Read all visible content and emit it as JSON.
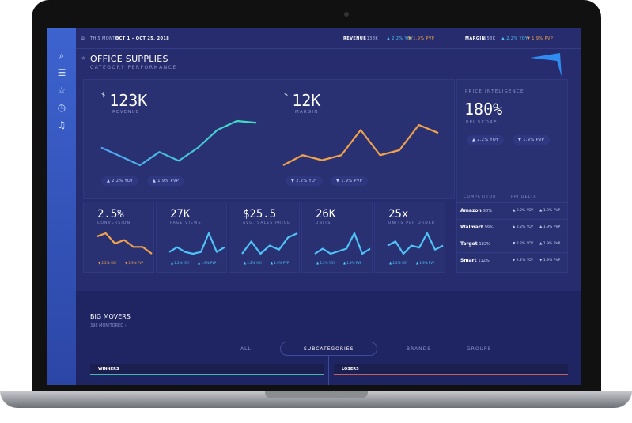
{
  "topbar": {
    "period_label": "THIS MONTH:",
    "period": "OCT 1 – OCT 25, 2018",
    "revenue_label": "REVENUE",
    "revenue": "$138K",
    "revenue_yoy": "▲ 2.2% YOY",
    "revenue_pvp": "▼ 1.9% PVP",
    "margin_label": "MARGIN",
    "margin": "$58K",
    "margin_yoy": "▲ 2.2% YOY",
    "margin_pvp": "▼ 1.9% PVP"
  },
  "header": {
    "title": "OFFICE SUPPLIES",
    "subtitle": "CATEGORY PERFORMANCE"
  },
  "revenue": {
    "currency": "$",
    "value": "123K",
    "label": "REVENUE",
    "yoy": "▲ 2.2% YOY",
    "pvp": "▲ 1.9% PVP",
    "points": [
      5,
      4,
      3,
      4.5,
      3.5,
      5,
      7,
      8,
      7.8
    ],
    "color": "#4fc3f7"
  },
  "margin": {
    "currency": "$",
    "value": "12K",
    "label": "MARGIN",
    "yoy": "▼ 2.2% YOY",
    "pvp": "▼ 1.9% PVP",
    "points": [
      3,
      4,
      3.5,
      4,
      6.5,
      4,
      4.5,
      7,
      6.2
    ],
    "color": "#f0a34b"
  },
  "price": {
    "title": "PRICE INTELIGENCE",
    "value": "180%",
    "label": "PPI SCORE",
    "yoy": "▲ 2.2% YOY",
    "pvp": "▼ 1.9% PVP",
    "col1": "COMPETITOR",
    "col2": "PPI DELTA",
    "rows": [
      {
        "name": "Amazon",
        "pct": "98%",
        "yoy": "▲ 2.2% YOY",
        "pvp": "▲ 1.9% PVP"
      },
      {
        "name": "Walmart",
        "pct": "99%",
        "yoy": "▲ 2.2% YOY",
        "pvp": "▲ 1.9% PVP"
      },
      {
        "name": "Target",
        "pct": "182%",
        "yoy": "▼ 2.2% YOY",
        "pvp": "▲ 1.9% PVP"
      },
      {
        "name": "Smart",
        "pct": "112%",
        "yoy": "▼ 2.2% YOY",
        "pvp": "▼ 1.9% PVP"
      }
    ]
  },
  "cards": [
    {
      "value": "2.5%",
      "label": "CONVERSION",
      "yoy": "▼ 2.2% YOY",
      "pvp": "▼ 1.9% PVP",
      "color": "#f0a34b",
      "points": [
        6,
        7,
        4,
        5,
        3,
        3,
        1
      ]
    },
    {
      "value": "27K",
      "label": "PAGE VIEWS",
      "yoy": "▲ 2.2% YOY",
      "pvp": "▲ 1.9% PVP",
      "color": "#4fc3f7",
      "points": [
        3,
        4,
        3,
        2.6,
        3,
        7,
        3,
        4
      ]
    },
    {
      "value": "$25.5",
      "label": "AVG. SALES PRICE",
      "yoy": "▲ 2.2% YOY",
      "pvp": "▲ 1.9% PVP",
      "color": "#4fc3f7",
      "points": [
        2,
        5,
        2,
        4,
        3,
        6,
        7
      ]
    },
    {
      "value": "26K",
      "label": "UNITS",
      "yoy": "▲ 2.2% YOY",
      "pvp": "▲ 1.9% PVP",
      "color": "#4fc3f7",
      "points": [
        3,
        4,
        3,
        3.5,
        4,
        7,
        3,
        4
      ]
    },
    {
      "value": "25x",
      "label": "UNITS PER ORDER",
      "yoy": "▲ 2.2% YOY",
      "pvp": "▲ 1.9% PVP",
      "color": "#4fc3f7",
      "points": [
        4,
        5,
        2,
        4,
        3.5,
        7,
        3,
        4
      ]
    }
  ],
  "movers": {
    "title": "BIG MOVERS",
    "monitored": "398 MONITORED ›",
    "tabs": [
      "ALL",
      "SUBCATEGORIES",
      "BRANDS",
      "GROUPS"
    ],
    "active_tab": "SUBCATEGORIES",
    "winners": "WINNERS",
    "losers": "LOSERS"
  },
  "sidebar": [
    "search-icon",
    "list-icon",
    "star-icon",
    "clock-icon",
    "bell-icon"
  ]
}
